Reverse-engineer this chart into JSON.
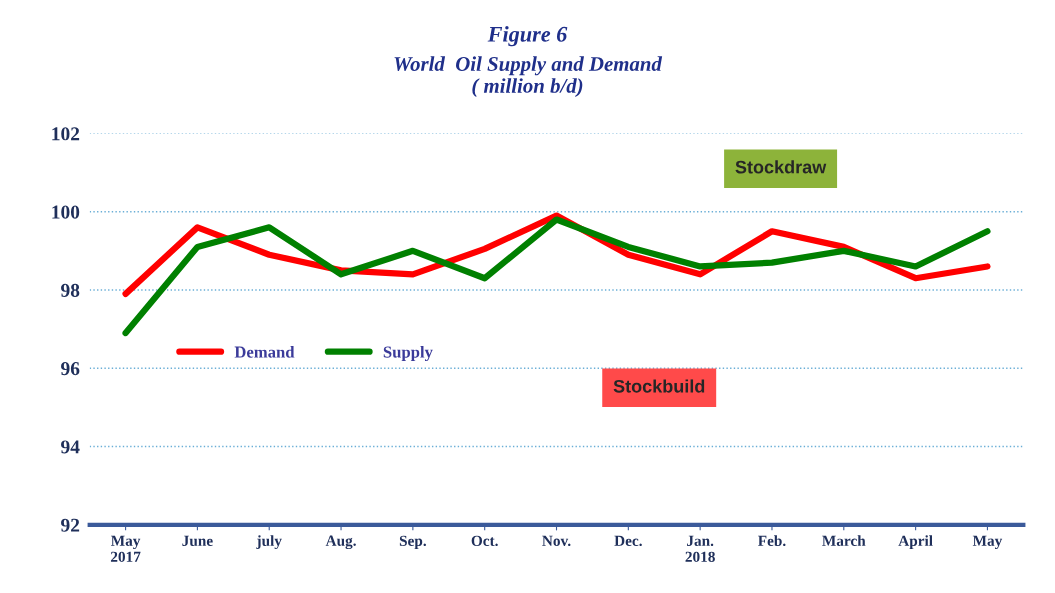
{
  "chart_data": {
    "type": "line",
    "title": "Figure 6",
    "subtitle": "World  Oil Supply and Demand\n( million b/d)",
    "categories": [
      "May\n2017",
      "June",
      "july",
      "Aug.",
      "Sep.",
      "Oct.",
      "Nov.",
      "Dec.",
      "Jan.\n2018",
      "Feb.",
      "March",
      "April",
      "May"
    ],
    "series": [
      {
        "name": "Demand",
        "color": "#ff0000",
        "values": [
          97.9,
          99.6,
          98.9,
          98.5,
          98.4,
          99.05,
          99.9,
          98.9,
          98.4,
          99.5,
          99.1,
          98.3,
          98.6
        ]
      },
      {
        "name": "Supply",
        "color": "#008000",
        "values": [
          96.9,
          99.1,
          99.6,
          98.4,
          99.0,
          98.3,
          99.8,
          99.1,
          98.6,
          98.7,
          99.0,
          98.6,
          99.5
        ]
      }
    ],
    "ylim": [
      92,
      102
    ],
    "yticks": [
      92,
      94,
      96,
      98,
      100,
      102
    ],
    "grid": "y",
    "legend": "lower left",
    "marker": "none",
    "line_style": "solid",
    "annotations": [
      "Stockdraw",
      "Stockbuild"
    ]
  }
}
